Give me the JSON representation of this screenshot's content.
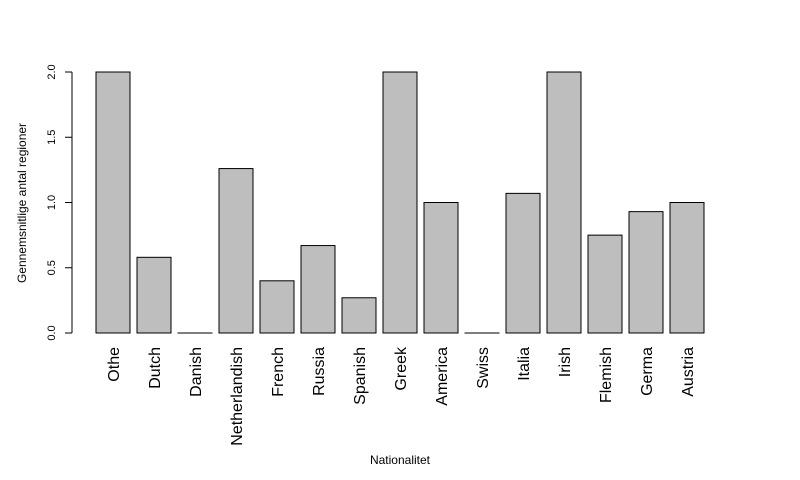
{
  "chart_data": {
    "type": "bar",
    "title": "",
    "xlabel": "Nationalitet",
    "ylabel": "Gennemsnitlige antal regioner",
    "categories": [
      "Othe",
      "Dutch",
      "Danish",
      "Netherlandish",
      "French",
      "Russia",
      "Spanish",
      "Greek",
      "America",
      "Swiss",
      "Italia",
      "Irish",
      "Flemish",
      "Germa",
      "Austria"
    ],
    "values": [
      2.0,
      0.58,
      0.0,
      1.26,
      0.4,
      0.67,
      0.27,
      2.0,
      1.0,
      0.0,
      1.07,
      2.0,
      0.75,
      0.93,
      1.0
    ],
    "ylim": [
      0,
      2
    ],
    "yticks": [
      "0.0",
      "0.5",
      "1.0",
      "1.5",
      "2.0"
    ],
    "bar_color": "#bebebe",
    "grid": false,
    "legend": "none"
  }
}
